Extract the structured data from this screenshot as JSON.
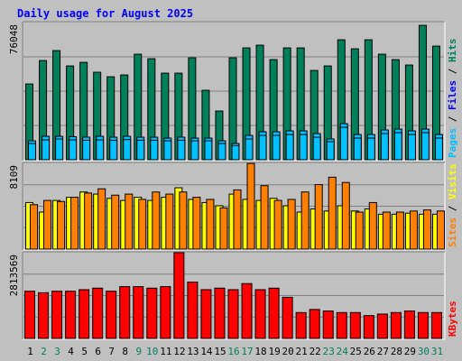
{
  "chart_data": {
    "type": "bar",
    "title": "Daily usage for August 2025",
    "categories": [
      "1",
      "2",
      "3",
      "4",
      "5",
      "6",
      "7",
      "8",
      "9",
      "10",
      "11",
      "12",
      "13",
      "14",
      "15",
      "16",
      "17",
      "18",
      "19",
      "20",
      "21",
      "22",
      "23",
      "24",
      "25",
      "26",
      "27",
      "28",
      "29",
      "30",
      "31"
    ],
    "weekend_days": [
      "2",
      "3",
      "9",
      "10",
      "16",
      "17",
      "23",
      "24",
      "30",
      "31"
    ],
    "colors": {
      "background": "#c0c0c0",
      "plot_background": "#c0c0c0",
      "title": "#0000ff",
      "gridline": "#808080",
      "weekday_label": "#000000",
      "weekend_label": "#00805a",
      "hits": "#00805a",
      "files": "#00c0ff",
      "pages": "#00c0ff",
      "sites": "#ff8000",
      "visits": "#ffff00",
      "kbytes": "#ff0000",
      "sep_black": "#000000"
    },
    "panels": [
      {
        "id": "top",
        "max_label": "76048",
        "max": 76048,
        "legend": [
          {
            "text": "Pages",
            "color": "#00c0ff"
          },
          {
            "text": " / ",
            "color": "#000000"
          },
          {
            "text": "Files",
            "color": "#0000ff"
          },
          {
            "text": " / ",
            "color": "#000000"
          },
          {
            "text": "Hits",
            "color": "#00805a"
          }
        ],
        "series": [
          {
            "name": "Hits",
            "values": [
              42000,
              55000,
              60500,
              52000,
              54000,
              48500,
              46000,
              47000,
              58500,
              56000,
              48000,
              48000,
              56500,
              38500,
              27000,
              56500,
              62000,
              63500,
              55500,
              62000,
              62000,
              49500,
              52000,
              66500,
              61500,
              66500,
              58500,
              55500,
              52500,
              74500,
              63000
            ]
          },
          {
            "name": "Files",
            "values": [
              10500,
              13000,
              13000,
              12800,
              12500,
              13000,
              12500,
              13000,
              12500,
              12500,
              12000,
              12500,
              12000,
              12000,
              10500,
              9000,
              13500,
              15500,
              15500,
              16000,
              16000,
              14500,
              11500,
              20000,
              14000,
              14000,
              16500,
              17000,
              16000,
              17000,
              14000
            ]
          },
          {
            "name": "Pages",
            "values": [
              9000,
              11000,
              11500,
              11000,
              10800,
              11000,
              10800,
              11200,
              10800,
              10800,
              10500,
              10800,
              10500,
              10500,
              9000,
              7800,
              11500,
              13500,
              13500,
              14000,
              14000,
              12500,
              10000,
              18000,
              12000,
              12000,
              14500,
              15000,
              14000,
              15000,
              12000
            ]
          }
        ]
      },
      {
        "id": "middle",
        "max_label": "8109",
        "max": 8109,
        "legend": [
          {
            "text": "Sites",
            "color": "#ff8000"
          },
          {
            "text": " / ",
            "color": "#000000"
          },
          {
            "text": "Visits",
            "color": "#ffff00"
          }
        ],
        "series": [
          {
            "name": "Visits",
            "values": [
              4400,
              3500,
              4600,
              4900,
              5400,
              5200,
              4800,
              4600,
              4900,
              4600,
              4900,
              5800,
              4700,
              4400,
              4100,
              5200,
              4700,
              4600,
              4800,
              4100,
              3500,
              3800,
              3600,
              4100,
              3600,
              3800,
              3300,
              3300,
              3400,
              3300,
              3300
            ]
          },
          {
            "name": "Sites",
            "values": [
              4200,
              4600,
              4500,
              4900,
              5300,
              5700,
              5100,
              5200,
              4700,
              5400,
              5200,
              5400,
              4900,
              4700,
              3900,
              5600,
              8100,
              6000,
              4600,
              4700,
              5400,
              6100,
              6800,
              6300,
              3500,
              4400,
              3500,
              3500,
              3600,
              3700,
              3600
            ]
          }
        ]
      },
      {
        "id": "bottom",
        "max_label": "2813569",
        "max": 2813569,
        "legend": [
          {
            "text": "KBytes",
            "color": "#ff0000"
          }
        ],
        "series": [
          {
            "name": "KBytes",
            "values": [
              1550000,
              1500000,
              1550000,
              1550000,
              1600000,
              1650000,
              1550000,
              1700000,
              1700000,
              1650000,
              1700000,
              2813569,
              1850000,
              1600000,
              1650000,
              1600000,
              1800000,
              1600000,
              1650000,
              1350000,
              850000,
              950000,
              900000,
              850000,
              850000,
              750000,
              800000,
              850000,
              900000,
              850000,
              850000
            ]
          }
        ]
      }
    ]
  }
}
